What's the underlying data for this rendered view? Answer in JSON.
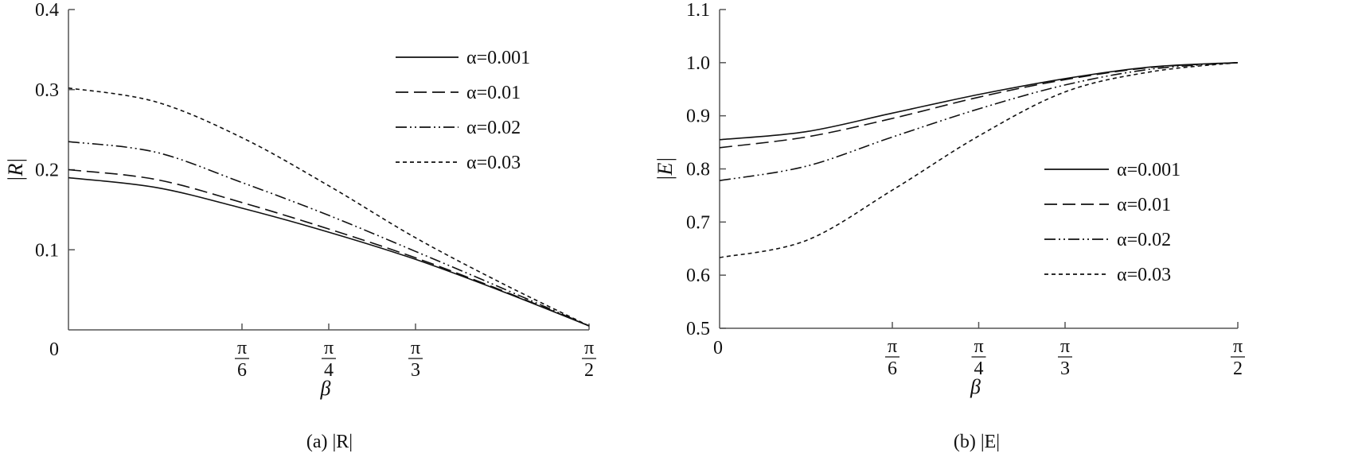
{
  "chart_data": [
    {
      "type": "line",
      "panel_caption": "(a) |R|",
      "ylabel": "|R|",
      "xlabel": "β",
      "xlim": [
        0,
        1.5708
      ],
      "ylim": [
        0,
        0.4
      ],
      "y_ticks": [
        "0.1",
        "0.2",
        "0.3",
        "0.4"
      ],
      "origin_label": "0",
      "x_ticks": [
        {
          "value": 0.5236,
          "num": "π",
          "den": "6"
        },
        {
          "value": 0.7854,
          "num": "π",
          "den": "4"
        },
        {
          "value": 1.0472,
          "num": "π",
          "den": "3"
        },
        {
          "value": 1.5708,
          "num": "π",
          "den": "2"
        }
      ],
      "legend_position": "top-right",
      "x": [
        0,
        0.2618,
        0.5236,
        0.7854,
        1.0472,
        1.309,
        1.5708
      ],
      "series": [
        {
          "name": "α=0.001",
          "dash": "solid",
          "values": [
            0.19,
            0.178,
            0.152,
            0.122,
            0.088,
            0.048,
            0.005
          ]
        },
        {
          "name": "α=0.01",
          "dash": "dashed",
          "values": [
            0.2,
            0.188,
            0.159,
            0.126,
            0.09,
            0.049,
            0.005
          ]
        },
        {
          "name": "α=0.02",
          "dash": "dashdotdot",
          "values": [
            0.235,
            0.222,
            0.184,
            0.143,
            0.098,
            0.052,
            0.005
          ]
        },
        {
          "name": "α=0.03",
          "dash": "dotted",
          "values": [
            0.302,
            0.285,
            0.24,
            0.18,
            0.115,
            0.058,
            0.005
          ]
        }
      ]
    },
    {
      "type": "line",
      "panel_caption": "(b) |E|",
      "ylabel": "|E|",
      "xlabel": "β",
      "xlim": [
        0,
        1.5708
      ],
      "ylim": [
        0.5,
        1.1
      ],
      "y_ticks": [
        "0.5",
        "0.6",
        "0.7",
        "0.8",
        "0.9",
        "1.0",
        "1.1"
      ],
      "origin_label": "0",
      "x_ticks": [
        {
          "value": 0.5236,
          "num": "π",
          "den": "6"
        },
        {
          "value": 0.7854,
          "num": "π",
          "den": "4"
        },
        {
          "value": 1.0472,
          "num": "π",
          "den": "3"
        },
        {
          "value": 1.5708,
          "num": "π",
          "den": "2"
        }
      ],
      "legend_position": "center-right",
      "x": [
        0,
        0.2618,
        0.5236,
        0.7854,
        1.0472,
        1.309,
        1.5708
      ],
      "series": [
        {
          "name": "α=0.001",
          "dash": "solid",
          "values": [
            0.855,
            0.87,
            0.905,
            0.94,
            0.97,
            0.992,
            1.0
          ]
        },
        {
          "name": "α=0.01",
          "dash": "dashed",
          "values": [
            0.84,
            0.86,
            0.895,
            0.935,
            0.968,
            0.991,
            1.0
          ]
        },
        {
          "name": "α=0.02",
          "dash": "dashdotdot",
          "values": [
            0.778,
            0.805,
            0.86,
            0.913,
            0.958,
            0.988,
            1.0
          ]
        },
        {
          "name": "α=0.03",
          "dash": "dotted",
          "values": [
            0.633,
            0.665,
            0.76,
            0.862,
            0.945,
            0.983,
            1.0
          ]
        }
      ]
    }
  ]
}
